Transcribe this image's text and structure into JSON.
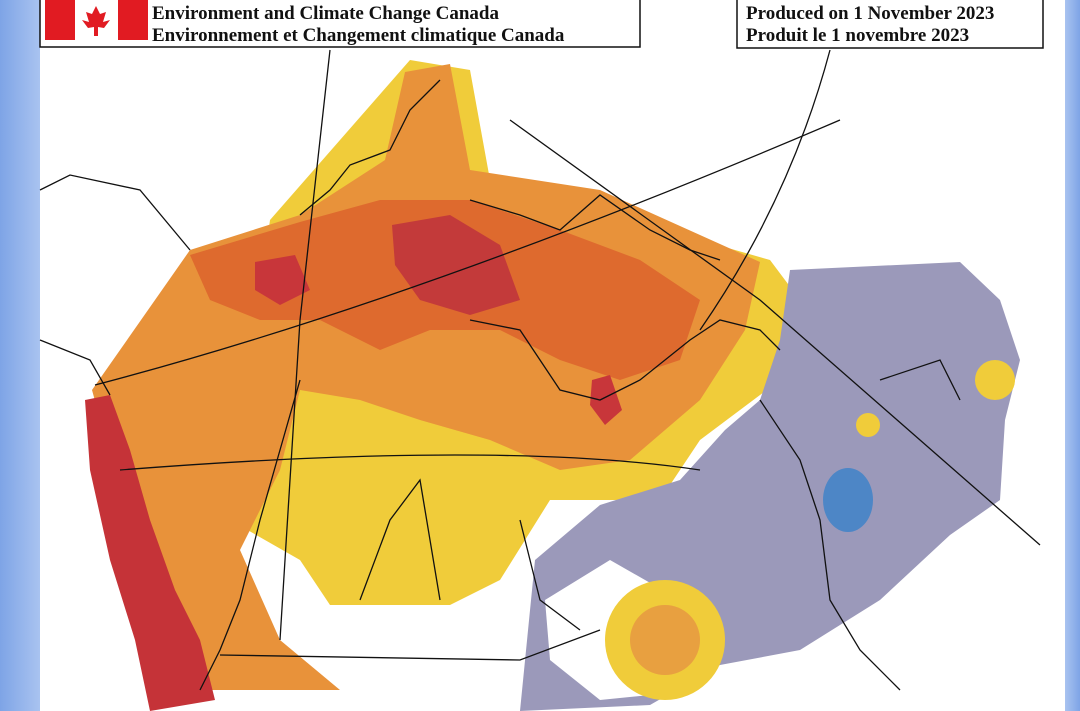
{
  "header": {
    "agency_en": "Environment and Climate Change Canada",
    "agency_fr": "Environnement et Changement climatique Canada"
  },
  "produced": {
    "en": "Produced on 1 November 2023",
    "fr": "Produit le 1 novembre 2023"
  }
}
